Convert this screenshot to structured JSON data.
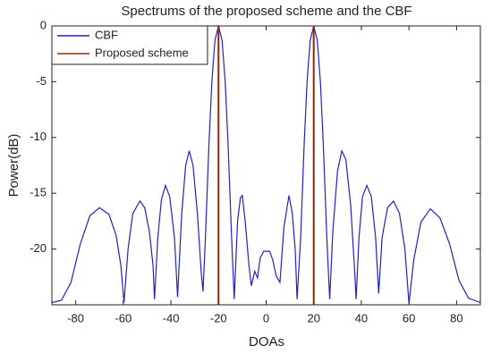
{
  "chart_data": {
    "type": "line",
    "title": "Spectrums of the proposed scheme and the CBF",
    "xlabel": "DOAs",
    "ylabel": "Power(dB)",
    "xlim": [
      -90,
      90
    ],
    "ylim": [
      -25,
      0
    ],
    "xticks": [
      -80,
      -60,
      -40,
      -20,
      0,
      20,
      40,
      60,
      80
    ],
    "yticks": [
      0,
      -5,
      -10,
      -15,
      -20
    ],
    "legend": "upper left",
    "series": [
      {
        "name": "CBF",
        "color": "#2222c0",
        "x": [
          -90,
          -86,
          -82,
          -78,
          -74,
          -70,
          -66,
          -63,
          -61,
          -59.7,
          -58,
          -56,
          -53,
          -51,
          -49,
          -47.5,
          -46.9,
          -45.5,
          -44,
          -42.3,
          -40.5,
          -38.5,
          -37.2,
          -35.5,
          -33.8,
          -32.3,
          -30.7,
          -28.8,
          -27.3,
          -26.5,
          -25.5,
          -24,
          -22.8,
          -21.5,
          -20,
          -18.5,
          -17.2,
          -16,
          -14.5,
          -13.4,
          -12,
          -10.8,
          -10,
          -8.8,
          -7.2,
          -6.2,
          -4.8,
          -3.6,
          -2.5,
          -1,
          1.5,
          2.8,
          4.2,
          5.8,
          7.5,
          9.6,
          11,
          12.2,
          13,
          14.5,
          16,
          17.2,
          18.5,
          20,
          21.5,
          22.8,
          24,
          25.5,
          26.7,
          28,
          30,
          31.8,
          33.5,
          35.5,
          37.2,
          37.8,
          39,
          40.5,
          42.3,
          44.2,
          46,
          47.3,
          48.7,
          51,
          53.5,
          56,
          58.3,
          60,
          62,
          65,
          69,
          73,
          77,
          81,
          85,
          90
        ],
        "values": [
          -24.8,
          -24.6,
          -23,
          -19.5,
          -17,
          -16.3,
          -16.9,
          -18.8,
          -21.5,
          -24.8,
          -20,
          -16.8,
          -15.7,
          -16.3,
          -18.5,
          -21.5,
          -24.5,
          -19,
          -15.6,
          -14.3,
          -15.3,
          -19,
          -24.3,
          -17,
          -12.5,
          -11.2,
          -12.5,
          -17,
          -22,
          -23.8,
          -19,
          -10.5,
          -5,
          -1.3,
          0,
          -1.3,
          -5,
          -10.5,
          -19,
          -24.5,
          -17.5,
          -15.4,
          -15.2,
          -17.5,
          -21.5,
          -23.3,
          -22,
          -22.6,
          -20.8,
          -20.2,
          -20.2,
          -21,
          -22.4,
          -23,
          -18,
          -15.2,
          -16.8,
          -20,
          -24.5,
          -19,
          -10.5,
          -5,
          -1.3,
          0,
          -1.3,
          -5,
          -10.5,
          -19,
          -24.5,
          -18.5,
          -13,
          -11.2,
          -12,
          -16,
          -22,
          -24.5,
          -19,
          -15.3,
          -14.3,
          -15.3,
          -19,
          -24,
          -19,
          -16.3,
          -15.7,
          -16.8,
          -20,
          -24.9,
          -21,
          -17.6,
          -16.4,
          -17.2,
          -19.5,
          -22.8,
          -24.4,
          -24.8
        ]
      },
      {
        "name": "Proposed scheme",
        "color": "#8b2a0a",
        "x": [
          -20,
          -20,
          null,
          20,
          20
        ],
        "values": [
          -25,
          0,
          null,
          -25,
          0
        ]
      }
    ]
  }
}
